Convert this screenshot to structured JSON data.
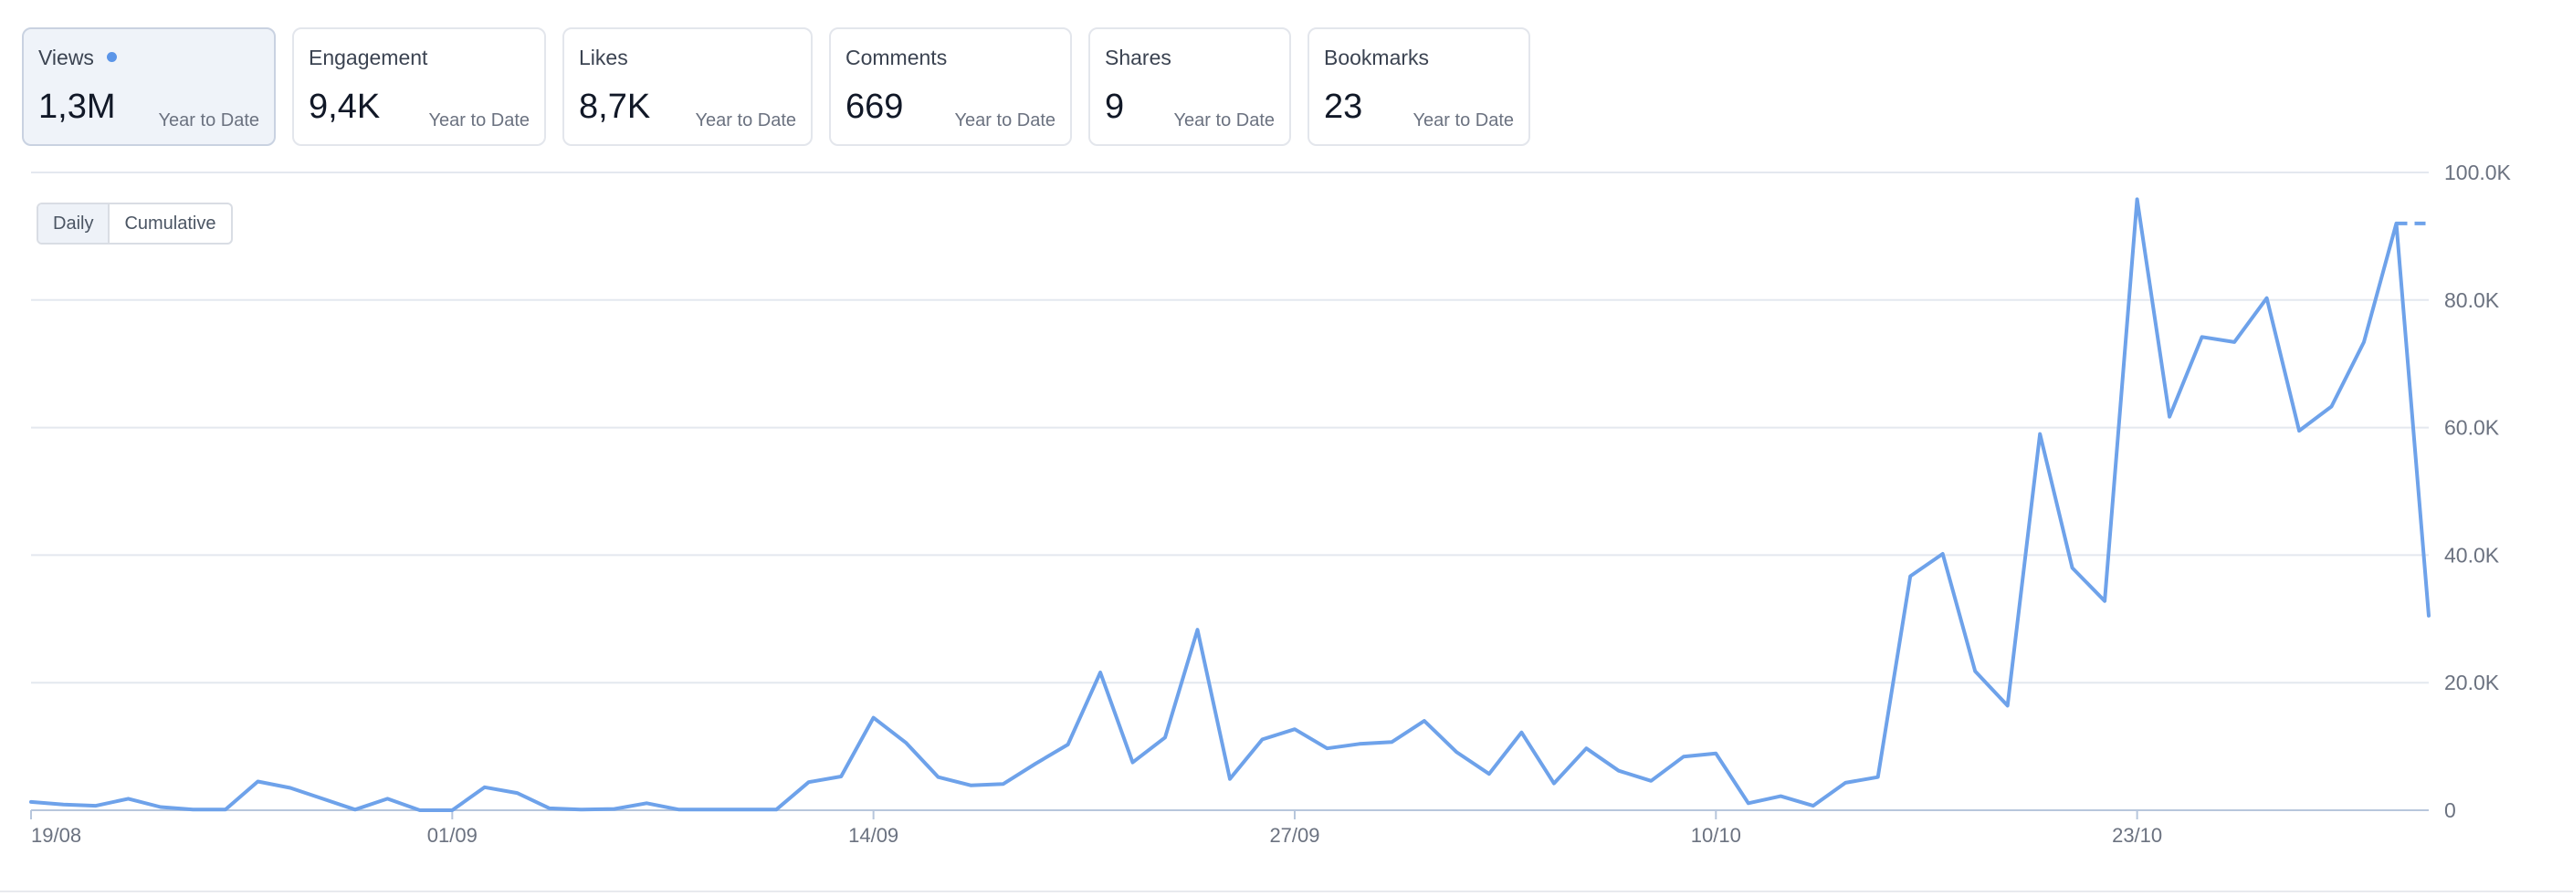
{
  "cards": [
    {
      "label": "Views",
      "value": "1,3M",
      "period": "Year to Date",
      "active": true
    },
    {
      "label": "Engagement",
      "value": "9,4K",
      "period": "Year to Date",
      "active": false
    },
    {
      "label": "Likes",
      "value": "8,7K",
      "period": "Year to Date",
      "active": false
    },
    {
      "label": "Comments",
      "value": "669",
      "period": "Year to Date",
      "active": false
    },
    {
      "label": "Shares",
      "value": "9",
      "period": "Year to Date",
      "active": false
    },
    {
      "label": "Bookmarks",
      "value": "23",
      "period": "Year to Date",
      "active": false
    }
  ],
  "toggle": {
    "daily": "Daily",
    "cumulative": "Cumulative",
    "selected": "Daily"
  },
  "colors": {
    "line": "#6ea2ea",
    "grid": "#e4e8ef",
    "axis": "#b7c6dc",
    "text": "#6b7280",
    "dot": "#5b95e8"
  },
  "chart_data": {
    "type": "line",
    "title": "",
    "xlabel": "",
    "ylabel": "",
    "grid": true,
    "legend": "none",
    "ylim": [
      0,
      100000
    ],
    "yticks": [
      "0",
      "20.0K",
      "40.0K",
      "60.0K",
      "80.0K",
      "100.0K"
    ],
    "x_tick_labels": [
      "19/08",
      "01/09",
      "14/09",
      "27/09",
      "10/10",
      "23/10"
    ],
    "series": [
      {
        "x": [
          "19/08",
          "20/08",
          "21/08",
          "22/08",
          "23/08",
          "24/08",
          "25/08",
          "26/08",
          "27/08",
          "28/08",
          "29/08",
          "30/08",
          "31/08",
          "01/09",
          "02/09",
          "03/09",
          "04/09",
          "05/09",
          "06/09",
          "07/09",
          "08/09",
          "09/09",
          "10/09",
          "11/09",
          "12/09",
          "13/09",
          "14/09",
          "15/09",
          "16/09",
          "17/09",
          "18/09",
          "19/09",
          "20/09",
          "21/09",
          "22/09",
          "23/09",
          "24/09",
          "25/09",
          "26/09",
          "27/09",
          "28/09",
          "29/09",
          "30/09",
          "01/10",
          "02/10",
          "03/10",
          "04/10",
          "05/10",
          "06/10",
          "07/10",
          "08/10",
          "09/10",
          "10/10",
          "11/10",
          "12/10",
          "13/10",
          "14/10",
          "15/10",
          "16/10",
          "17/10",
          "18/10",
          "19/10",
          "20/10",
          "21/10",
          "22/10",
          "23/10",
          "24/10",
          "25/10",
          "26/10",
          "27/10",
          "28/10",
          "29/10",
          "30/10",
          "31/10",
          "01/11"
        ],
        "values": [
          1300,
          900,
          700,
          1800,
          500,
          100,
          100,
          4500,
          3500,
          1800,
          100,
          1800,
          0,
          0,
          3600,
          2700,
          300,
          100,
          200,
          1100,
          100,
          100,
          100,
          100,
          4400,
          5300,
          14500,
          10600,
          5200,
          3900,
          4100,
          7300,
          10300,
          21600,
          7500,
          11400,
          28300,
          4900,
          11100,
          12700,
          9700,
          10400,
          10700,
          14000,
          9100,
          5700,
          12200,
          4200,
          9700,
          6200,
          4600,
          8400,
          8900,
          1100,
          2200,
          700,
          4300,
          5200,
          36700,
          40200,
          21800,
          16400,
          59000,
          38000,
          32800,
          95800,
          61700,
          74200,
          73400,
          80300,
          59500,
          63300,
          73400,
          92000,
          30500
        ]
      }
    ],
    "projection": {
      "from_index": 73,
      "value": 92000,
      "style": "dashed"
    }
  }
}
